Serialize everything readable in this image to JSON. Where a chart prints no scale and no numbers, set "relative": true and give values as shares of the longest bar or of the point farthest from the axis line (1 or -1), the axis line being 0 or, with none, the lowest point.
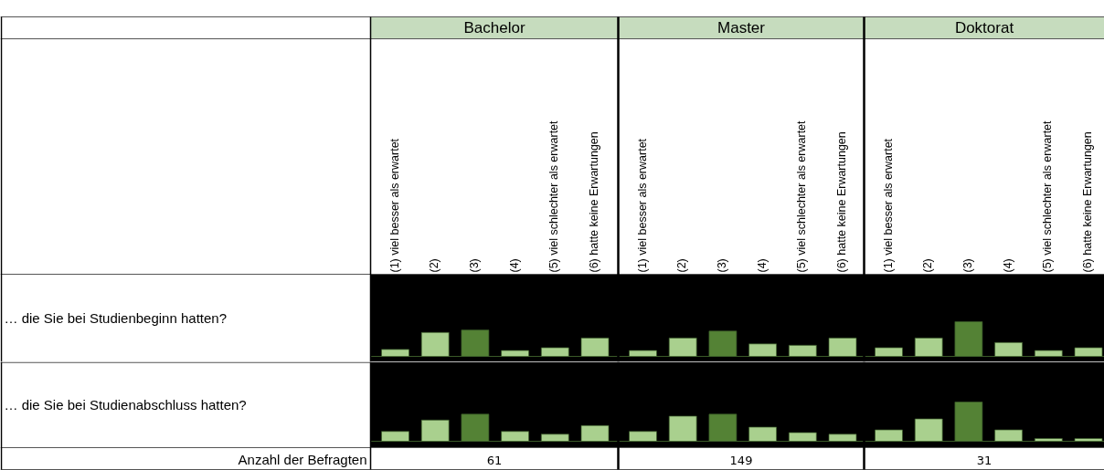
{
  "chart_data": [
    {
      "type": "bar",
      "relative": true,
      "ylabel": "… die Sie bei Studienbeginn hatten?",
      "annotations": [
        "Bachelor",
        "Master",
        "Doktorat"
      ],
      "categories": [
        "(1) viel besser als erwartet",
        "(2)",
        "(3)",
        "(4)",
        "(5) viel schlechter als erwartet",
        "(6) hatte keine Erwartungen",
        "(1) viel besser als erwartet",
        "(2)",
        "(3)",
        "(4)",
        "(5) viel schlechter als erwartet",
        "(6) hatte keine Erwartungen",
        "(1) viel besser als erwartet",
        "(2)",
        "(3)",
        "(4)",
        "(5) viel schlechter als erwartet",
        "(6) hatte keine Erwartungen"
      ],
      "values": [
        0.2,
        0.69,
        0.76,
        0.17,
        0.25,
        0.53,
        0.17,
        0.53,
        0.73,
        0.36,
        0.32,
        0.53,
        0.25,
        0.53,
        1,
        0.4,
        0.17,
        0.25
      ],
      "colors": [
        "#a9d08e",
        "#a9d08e",
        "#548235",
        "#a9d08e",
        "#a9d08e",
        "#a9d08e",
        "#a9d08e",
        "#a9d08e",
        "#548235",
        "#a9d08e",
        "#a9d08e",
        "#a9d08e",
        "#a9d08e",
        "#a9d08e",
        "#548235",
        "#a9d08e",
        "#a9d08e",
        "#a9d08e"
      ]
    },
    {
      "type": "bar",
      "relative": true,
      "ylabel": "… die Sie bei Studienabschluss hatten?",
      "annotations": [
        "Anzahl der Befragten",
        "61",
        "149",
        "31"
      ],
      "categories": [
        null,
        null,
        null,
        null,
        null,
        null,
        null,
        null,
        null,
        null,
        null,
        null,
        null,
        null,
        null,
        null,
        null,
        null
      ],
      "values": [
        0.25,
        0.54,
        0.69,
        0.25,
        0.18,
        0.4,
        0.25,
        0.64,
        0.69,
        0.36,
        0.22,
        0.18,
        0.29,
        0.57,
        1,
        0.29,
        0.07,
        0.07
      ],
      "colors": [
        "#a9d08e",
        "#a9d08e",
        "#548235",
        "#a9d08e",
        "#a9d08e",
        "#a9d08e",
        "#a9d08e",
        "#a9d08e",
        "#548235",
        "#a9d08e",
        "#a9d08e",
        "#a9d08e",
        "#a9d08e",
        "#a9d08e",
        "#548235",
        "#a9d08e",
        "#a9d08e",
        "#a9d08e"
      ]
    }
  ]
}
